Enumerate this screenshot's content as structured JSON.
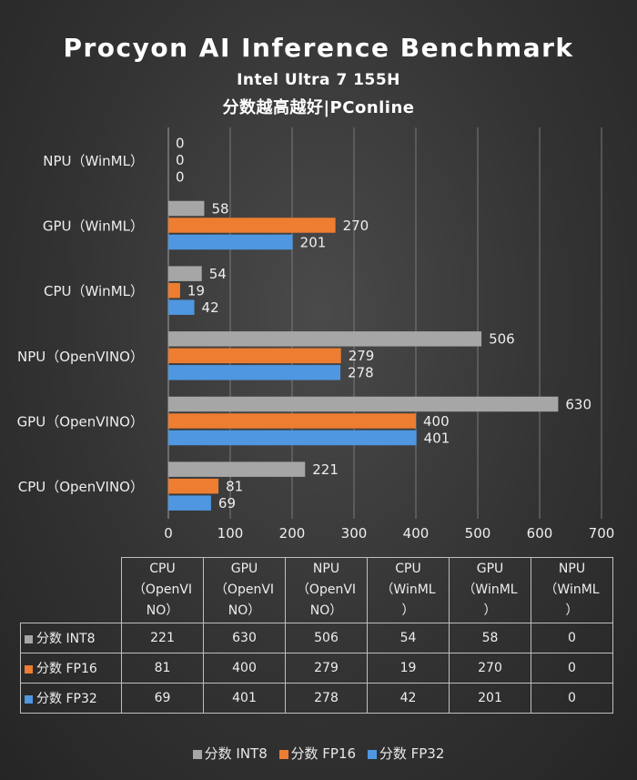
{
  "title": "Procyon AI Inference  Benchmark",
  "subtitle": "Intel Ultra 7 155H",
  "note": "分数越高越好|PConline",
  "chart_data": {
    "type": "bar",
    "orientation": "horizontal",
    "title": "Procyon AI Inference  Benchmark",
    "subtitle": "Intel Ultra 7 155H",
    "categories": [
      "NPU（WinML）",
      "GPU（WinML）",
      "CPU（WinML）",
      "NPU（OpenVINO）",
      "GPU（OpenVINO）",
      "CPU（OpenVINO）"
    ],
    "series": [
      {
        "name": "分数 INT8",
        "color": "#a6a6a6",
        "values": [
          0,
          58,
          54,
          506,
          630,
          221
        ]
      },
      {
        "name": "分数 FP16",
        "color": "#ed7d31",
        "values": [
          0,
          270,
          19,
          279,
          400,
          81
        ]
      },
      {
        "name": "分数 FP32",
        "color": "#4f97e0",
        "values": [
          0,
          201,
          42,
          278,
          401,
          69
        ]
      }
    ],
    "xlim": [
      0,
      700
    ],
    "xticks": [
      "0",
      "100",
      "200",
      "300",
      "400",
      "500",
      "600",
      "700"
    ],
    "grid": true,
    "legend": "bottom"
  },
  "table": {
    "headers": [
      [
        "CPU",
        "（OpenVI",
        "NO）"
      ],
      [
        "GPU",
        "（OpenVI",
        "NO）"
      ],
      [
        "NPU",
        "（OpenVI",
        "NO）"
      ],
      [
        "CPU",
        "（WinML",
        "）"
      ],
      [
        "GPU",
        "（WinML",
        "）"
      ],
      [
        "NPU",
        "（WinML",
        "）"
      ]
    ],
    "rows": [
      {
        "label": "分数 INT8",
        "color": "#a6a6a6",
        "values": [
          "221",
          "630",
          "506",
          "54",
          "58",
          "0"
        ]
      },
      {
        "label": "分数 FP16",
        "color": "#ed7d31",
        "values": [
          "81",
          "400",
          "279",
          "19",
          "270",
          "0"
        ]
      },
      {
        "label": "分数 FP32",
        "color": "#4f97e0",
        "values": [
          "69",
          "401",
          "278",
          "42",
          "201",
          "0"
        ]
      }
    ]
  },
  "legend": [
    {
      "label": "分数 INT8",
      "color": "#a6a6a6"
    },
    {
      "label": "分数 FP16",
      "color": "#ed7d31"
    },
    {
      "label": "分数 FP32",
      "color": "#4f97e0"
    }
  ]
}
